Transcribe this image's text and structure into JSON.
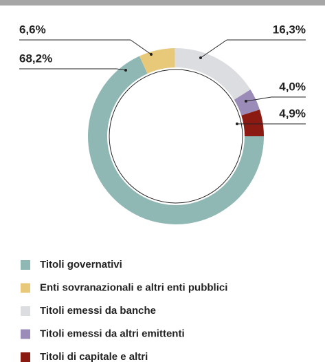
{
  "chart_data": {
    "type": "pie",
    "categories": [
      "Titoli governativi",
      "Enti sovranazionali e altri enti pubblici",
      "Titoli emessi da banche",
      "Titoli emessi da altri emittenti",
      "Titoli di capitale e altri"
    ],
    "values": [
      68.2,
      6.6,
      16.3,
      4.0,
      4.9
    ],
    "value_labels": [
      "68,2%",
      "6,6%",
      "16,3%",
      "4,0%",
      "4,9%"
    ],
    "colors": [
      "#8fb8b5",
      "#e8c97a",
      "#dcdde0",
      "#9b8bb8",
      "#8b1a12"
    ],
    "legend": "bottom"
  }
}
